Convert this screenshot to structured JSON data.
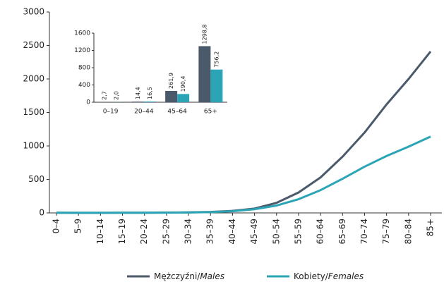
{
  "chart_data": [
    {
      "type": "line",
      "categories": [
        "0–4",
        "5–9",
        "10–14",
        "15–19",
        "20–24",
        "25–29",
        "30–34",
        "35–39",
        "40–44",
        "45–49",
        "50–54",
        "55–59",
        "60–64",
        "65–69",
        "70–74",
        "75–79",
        "80–84",
        "85+"
      ],
      "series": [
        {
          "name": "Mężczyźni/Males",
          "color": "#4b5a6b",
          "values": [
            2,
            1,
            1,
            2,
            3,
            5,
            8,
            15,
            30,
            65,
            150,
            305,
            530,
            840,
            1200,
            1620,
            2000,
            2410
          ]
        },
        {
          "name": "Kobiety/Females",
          "color": "#2ba5b5",
          "values": [
            2,
            1,
            1,
            2,
            3,
            4,
            7,
            12,
            25,
            55,
            110,
            205,
            340,
            510,
            690,
            850,
            990,
            1140
          ]
        }
      ],
      "ylim": [
        0,
        3000
      ],
      "yticks": [
        0,
        500,
        1000,
        1500,
        2000,
        2500,
        3000
      ],
      "legend": "bottom"
    },
    {
      "type": "bar",
      "categories": [
        "0–19",
        "20–44",
        "45–64",
        "65+"
      ],
      "series": [
        {
          "name": "Mężczyźni/Males",
          "color": "#4b5a6b",
          "values": [
            2.7,
            14.4,
            261.9,
            1298.8
          ],
          "value_labels": [
            "2,7",
            "14,4",
            "261,9",
            "1298,8"
          ]
        },
        {
          "name": "Kobiety/Females",
          "color": "#2ba5b5",
          "values": [
            2.0,
            16.5,
            190.4,
            756.2
          ],
          "value_labels": [
            "2,0",
            "16,5",
            "190,4",
            "756,2"
          ]
        }
      ],
      "ylim": [
        0,
        1600
      ],
      "yticks": [
        0,
        400,
        800,
        1200,
        1600
      ]
    }
  ]
}
